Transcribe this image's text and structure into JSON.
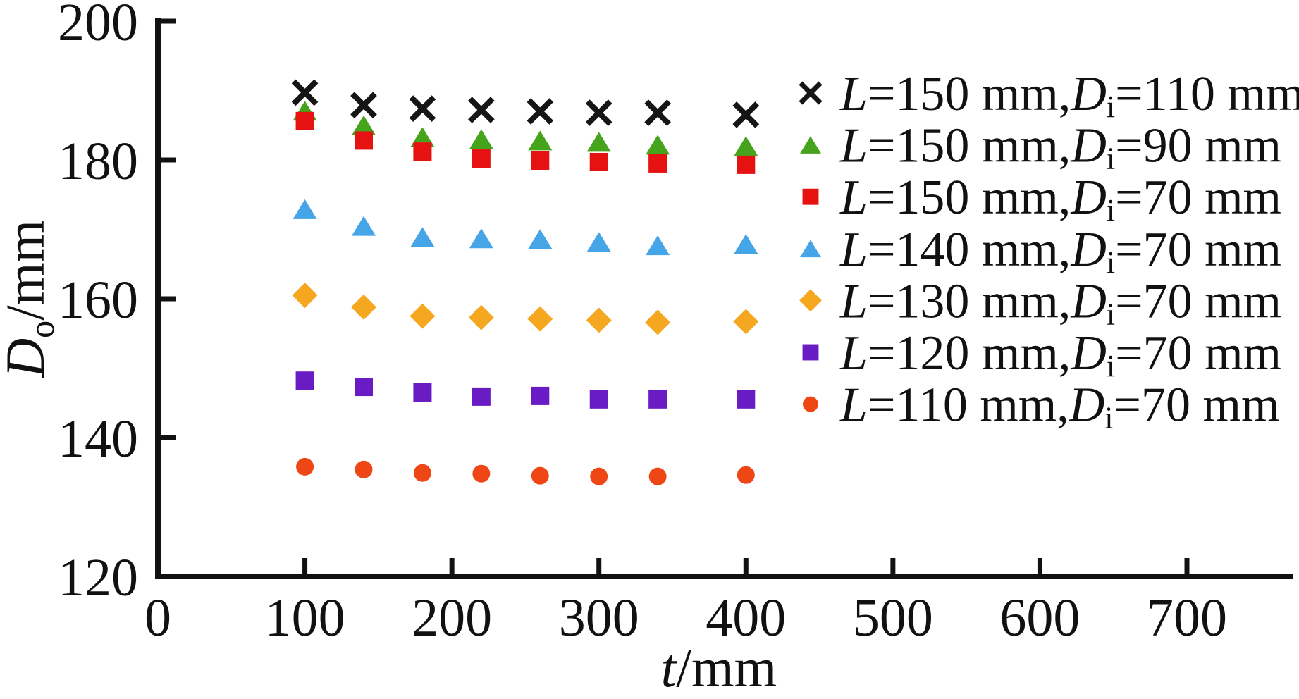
{
  "figure": {
    "background": "#ffffff",
    "ink_color": "#111111"
  },
  "chart_data": {
    "type": "scatter",
    "title": "",
    "xlabel_parts": [
      "t",
      "/mm"
    ],
    "ylabel_parts": [
      "D",
      "o",
      "/mm"
    ],
    "xlim": [
      0,
      770
    ],
    "ylim": [
      120,
      200
    ],
    "x_ticks": [
      0,
      100,
      200,
      300,
      400,
      500,
      600,
      700
    ],
    "y_ticks": [
      120,
      140,
      160,
      180,
      200
    ],
    "grid": false,
    "legend_position": "upper right",
    "x": [
      100,
      140,
      180,
      220,
      260,
      300,
      340,
      400
    ],
    "series": [
      {
        "name": "L=150 mm,Di=110 mm",
        "label_parts": [
          "L",
          "=150 mm,",
          "D",
          "i",
          "=110 mm"
        ],
        "marker": "cross",
        "color": "#151515",
        "values": [
          189.7,
          187.9,
          187.4,
          187.2,
          187.0,
          186.8,
          186.8,
          186.5
        ]
      },
      {
        "name": "L=150 mm,Di=90 mm",
        "label_parts": [
          "L",
          "=150 mm,",
          "D",
          "i",
          "=90 mm"
        ],
        "marker": "triangle",
        "color": "#46a31c",
        "values": [
          187.1,
          185.0,
          183.3,
          183.0,
          182.8,
          182.6,
          182.2,
          182.0
        ]
      },
      {
        "name": "L=150 mm,Di=70 mm",
        "label_parts": [
          "L",
          "=150 mm,",
          "D",
          "i",
          "=70 mm"
        ],
        "marker": "square",
        "color": "#e61212",
        "values": [
          185.6,
          182.8,
          181.2,
          180.2,
          179.9,
          179.7,
          179.5,
          179.3
        ]
      },
      {
        "name": "L=140 mm,Di=70 mm",
        "label_parts": [
          "L",
          "=140 mm,",
          "D",
          "i",
          "=70 mm"
        ],
        "marker": "triangle",
        "color": "#45a5e6",
        "values": [
          172.9,
          170.5,
          168.9,
          168.7,
          168.6,
          168.2,
          167.7,
          167.9
        ]
      },
      {
        "name": "L=130 mm,Di=70 mm",
        "label_parts": [
          "L",
          "=130 mm,",
          "D",
          "i",
          "=70 mm"
        ],
        "marker": "diamond",
        "color": "#f5a81f",
        "values": [
          160.5,
          158.8,
          157.5,
          157.3,
          157.1,
          156.9,
          156.6,
          156.7
        ]
      },
      {
        "name": "L=120 mm,Di=70 mm",
        "label_parts": [
          "L",
          "=120 mm,",
          "D",
          "i",
          "=70 mm"
        ],
        "marker": "square",
        "color": "#6a1cc4",
        "values": [
          148.2,
          147.3,
          146.5,
          145.9,
          146.0,
          145.5,
          145.5,
          145.5
        ]
      },
      {
        "name": "L=110 mm,Di=70 mm",
        "label_parts": [
          "L",
          "=110 mm,",
          "D",
          "i",
          "=70 mm"
        ],
        "marker": "circle",
        "color": "#ee4715",
        "values": [
          135.8,
          135.4,
          134.9,
          134.8,
          134.5,
          134.4,
          134.4,
          134.6
        ]
      }
    ]
  }
}
